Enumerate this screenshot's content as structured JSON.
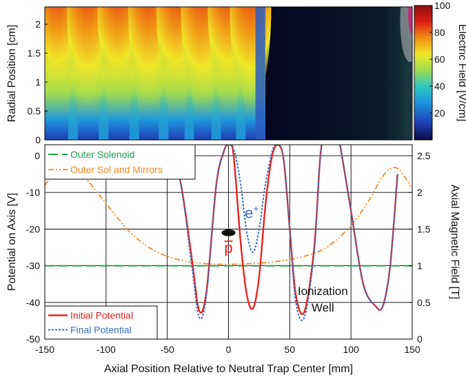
{
  "chart_data": [
    {
      "type": "heatmap",
      "xlabel": "",
      "ylabel": "Radial Position [cm]",
      "ylim": [
        0,
        2.3
      ],
      "yticks": [
        "0",
        "0.5",
        "1",
        "1.5",
        "2"
      ],
      "colorbar": {
        "label": "Electric Field [V/cm]",
        "range": [
          0,
          100
        ],
        "ticks": [
          "20",
          "40",
          "60",
          "80",
          "100"
        ],
        "colormap": [
          "#0a0a3c",
          "#1e3cb4",
          "#1e96dc",
          "#30c8c0",
          "#a0dc50",
          "#f0e628",
          "#f08c14",
          "#dc1e14",
          "#8c0f0f"
        ]
      },
      "description_values": {
        "x_span_mm": [
          -150,
          150
        ],
        "high_field_region_mm": [
          -150,
          30
        ],
        "dark_region_mm": [
          30,
          150
        ]
      }
    },
    {
      "type": "line",
      "xlabel": "Axial Position Relative to Neutral Trap Center [mm]",
      "ylabel": "Potential on Axis [V]",
      "y2label": "Axial Magnetic Field [T]",
      "xlim": [
        -150,
        150
      ],
      "ylim": [
        -50,
        3
      ],
      "y2lim": [
        0,
        2.65
      ],
      "xticks": [
        "-150",
        "-100",
        "-50",
        "0",
        "50",
        "100",
        "150"
      ],
      "yticks": [
        "-50",
        "-40",
        "-30",
        "-20",
        "-10",
        "0"
      ],
      "y2ticks": [
        "0",
        "0.5",
        "1",
        "1.5",
        "2",
        "2.5"
      ],
      "grid": true,
      "series": [
        {
          "name": "Initial Potential",
          "axis": "left",
          "color": "#e8231e",
          "x": [
            -75,
            -60,
            -50,
            -40,
            -30,
            -24,
            -18,
            -10,
            -4,
            0,
            4,
            10,
            15,
            20,
            25,
            30,
            35,
            40,
            45,
            50,
            55,
            62,
            70,
            75,
            80,
            85,
            90,
            100,
            110,
            120,
            126,
            132,
            138
          ],
          "y": [
            0,
            -0.7,
            -2,
            -6,
            -28,
            -42.2,
            -37,
            -8,
            1,
            3,
            0.5,
            -24,
            -38,
            -41.6,
            -33,
            -14,
            -1,
            3,
            -1,
            -20,
            -38,
            -42.5,
            -25,
            0,
            10,
            12,
            5,
            -15,
            -35,
            -41,
            -41,
            -30,
            -5
          ]
        },
        {
          "name": "Final Potential",
          "axis": "left",
          "color": "#3a6fc0",
          "x": [
            -75,
            -60,
            -50,
            -40,
            -30,
            -24,
            -18,
            -10,
            -4,
            0,
            5,
            10,
            15,
            20,
            25,
            30,
            36,
            40,
            45,
            50,
            55,
            62,
            70,
            75,
            80,
            85,
            90,
            100,
            110,
            120,
            126,
            132,
            138
          ],
          "y": [
            0,
            -0.7,
            -2,
            -6,
            -30,
            -44,
            -38,
            -8,
            1,
            3,
            1,
            -8,
            -21,
            -26.3,
            -20,
            -8,
            1.5,
            3,
            -1,
            -20,
            -40,
            -44,
            -26,
            0,
            10,
            12,
            5,
            -15,
            -35,
            -41,
            -41,
            -30,
            -5
          ]
        },
        {
          "name": "Outer Solenoid",
          "axis": "right",
          "color": "#1f9e46",
          "x": [
            -150,
            150
          ],
          "y": [
            1,
            1
          ]
        },
        {
          "name": "Outer Sol and Mirrors",
          "axis": "right",
          "color": "#f08a24",
          "x": [
            -150,
            -140,
            -133,
            -120,
            -100,
            -80,
            -60,
            -40,
            -20,
            0,
            20,
            40,
            60,
            80,
            100,
            115,
            125,
            133,
            140,
            150
          ],
          "y": [
            2.1,
            2.3,
            2.33,
            2.25,
            1.85,
            1.45,
            1.2,
            1.08,
            1.03,
            1.02,
            1.03,
            1.06,
            1.12,
            1.25,
            1.55,
            1.9,
            2.2,
            2.33,
            2.3,
            2.05
          ]
        }
      ],
      "annotations": [
        {
          "text": "e",
          "superscript": "+",
          "x": 19,
          "y": -17,
          "color": "#3a6fc0"
        },
        {
          "text": "p",
          "overline": true,
          "x": 0,
          "y": -26.5,
          "color": "#e8231e"
        },
        {
          "text": "Ionization",
          "x": 77,
          "y": -38,
          "color": "#111111"
        },
        {
          "text": "Well",
          "x": 77,
          "y": -42.5,
          "color": "#111111"
        }
      ],
      "antiproton_cloud": {
        "x": 0,
        "y": -21
      },
      "legend_top": [
        "Outer Solenoid",
        "Outer Sol and Mirrors"
      ],
      "legend_bottom": [
        "Initial Potential",
        "Final Potential"
      ]
    }
  ]
}
